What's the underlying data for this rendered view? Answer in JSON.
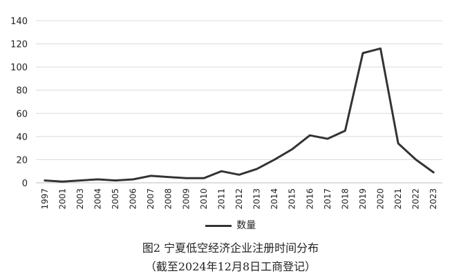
{
  "chart_data": {
    "type": "line",
    "title": "",
    "xlabel": "",
    "ylabel": "",
    "ylim": [
      0,
      140
    ],
    "yticks": [
      0,
      20,
      40,
      60,
      80,
      100,
      120,
      140
    ],
    "grid": true,
    "legend_position": "bottom-center",
    "categories": [
      "1997",
      "2001",
      "2003",
      "2004",
      "2005",
      "2006",
      "2007",
      "2008",
      "2009",
      "2010",
      "2011",
      "2012",
      "2013",
      "2014",
      "2015",
      "2016",
      "2017",
      "2018",
      "2019",
      "2020",
      "2021",
      "2022",
      "2023"
    ],
    "series": [
      {
        "name": "数量",
        "color": "#333333",
        "values": [
          2,
          1,
          2,
          3,
          2,
          3,
          6,
          5,
          4,
          4,
          10,
          7,
          12,
          20,
          29,
          41,
          38,
          45,
          112,
          116,
          34,
          20,
          9
        ]
      }
    ]
  },
  "caption": {
    "line1": "图2  宁夏低空经济企业注册时间分布",
    "line2": "（截至2024年12月8日工商登记）"
  }
}
